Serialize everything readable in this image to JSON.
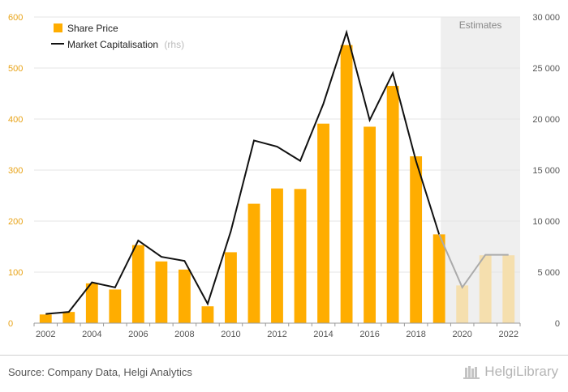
{
  "chart_data": {
    "type": "bar+line",
    "categories": [
      "2002",
      "2003",
      "2004",
      "2005",
      "2006",
      "2007",
      "2008",
      "2009",
      "2010",
      "2011",
      "2012",
      "2013",
      "2014",
      "2015",
      "2016",
      "2017",
      "2018",
      "2019",
      "2020",
      "2021",
      "2022"
    ],
    "x_tick_labels": [
      "2002",
      "2004",
      "2006",
      "2008",
      "2010",
      "2012",
      "2014",
      "2016",
      "2018",
      "2020",
      "2022"
    ],
    "series": [
      {
        "name": "Share Price",
        "axis": "left",
        "type": "bar",
        "color": "#ffad00",
        "estimate_color": "#f5dfae",
        "values": [
          17,
          22,
          78,
          66,
          153,
          121,
          105,
          33,
          139,
          234,
          264,
          263,
          391,
          545,
          385,
          465,
          327,
          174,
          74,
          133,
          133
        ]
      },
      {
        "name": "Market Capitalisation",
        "name_suffix": "(rhs)",
        "axis": "right",
        "type": "line",
        "color": "#111111",
        "estimate_color": "#aaaaaa",
        "values": [
          900,
          1100,
          4000,
          3500,
          8100,
          6500,
          6100,
          1900,
          9000,
          17900,
          17300,
          15900,
          21500,
          28500,
          19900,
          24500,
          15900,
          8700,
          3500,
          6700,
          6700
        ]
      }
    ],
    "estimates_from": "2020",
    "estimates_label": "Estimates",
    "y_left": {
      "min": 0,
      "max": 600,
      "ticks": [
        "0",
        "100",
        "200",
        "300",
        "400",
        "500",
        "600"
      ],
      "tick_color": "#e8a317"
    },
    "y_right": {
      "min": 0,
      "max": 30000,
      "ticks": [
        "0",
        "5 000",
        "10 000",
        "15 000",
        "20 000",
        "25 000",
        "30 000"
      ]
    },
    "grid": true,
    "legend_position": "top-left"
  },
  "footer": {
    "source": "Source: Company Data, Helgi Analytics",
    "brand": "HelgiLibrary"
  }
}
